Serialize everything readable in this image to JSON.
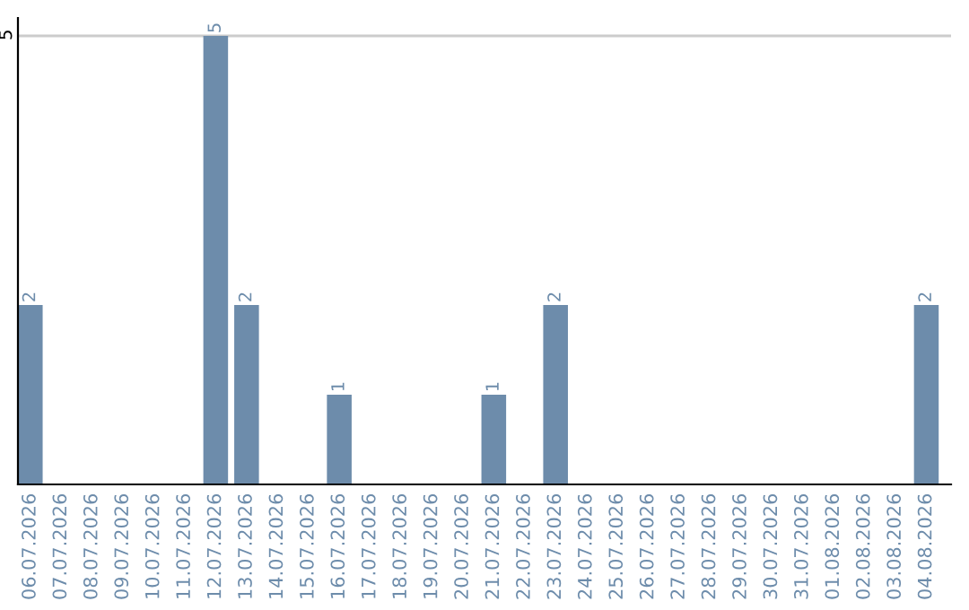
{
  "chart_data": {
    "type": "bar",
    "categories": [
      "06.07.2026",
      "07.07.2026",
      "08.07.2026",
      "09.07.2026",
      "10.07.2026",
      "11.07.2026",
      "12.07.2026",
      "13.07.2026",
      "14.07.2026",
      "15.07.2026",
      "16.07.2026",
      "17.07.2026",
      "18.07.2026",
      "19.07.2026",
      "20.07.2026",
      "21.07.2026",
      "22.07.2026",
      "23.07.2026",
      "24.07.2026",
      "25.07.2026",
      "26.07.2026",
      "27.07.2026",
      "28.07.2026",
      "29.07.2026",
      "30.07.2026",
      "31.07.2026",
      "01.08.2026",
      "02.08.2026",
      "03.08.2026",
      "04.08.2026"
    ],
    "values": [
      2,
      0,
      0,
      0,
      0,
      0,
      5,
      2,
      0,
      0,
      1,
      0,
      0,
      0,
      0,
      1,
      0,
      2,
      0,
      0,
      0,
      0,
      0,
      0,
      0,
      0,
      0,
      0,
      0,
      2
    ],
    "value_labels": [
      "2",
      null,
      null,
      null,
      null,
      null,
      "5",
      "2",
      null,
      null,
      "1",
      null,
      null,
      null,
      null,
      "1",
      null,
      "2",
      null,
      null,
      null,
      null,
      null,
      null,
      null,
      null,
      null,
      null,
      null,
      "2"
    ],
    "color": "#6d8cab",
    "ylim": [
      0,
      5.2
    ],
    "yticks": [
      5
    ],
    "grid": "y",
    "legend": false
  }
}
